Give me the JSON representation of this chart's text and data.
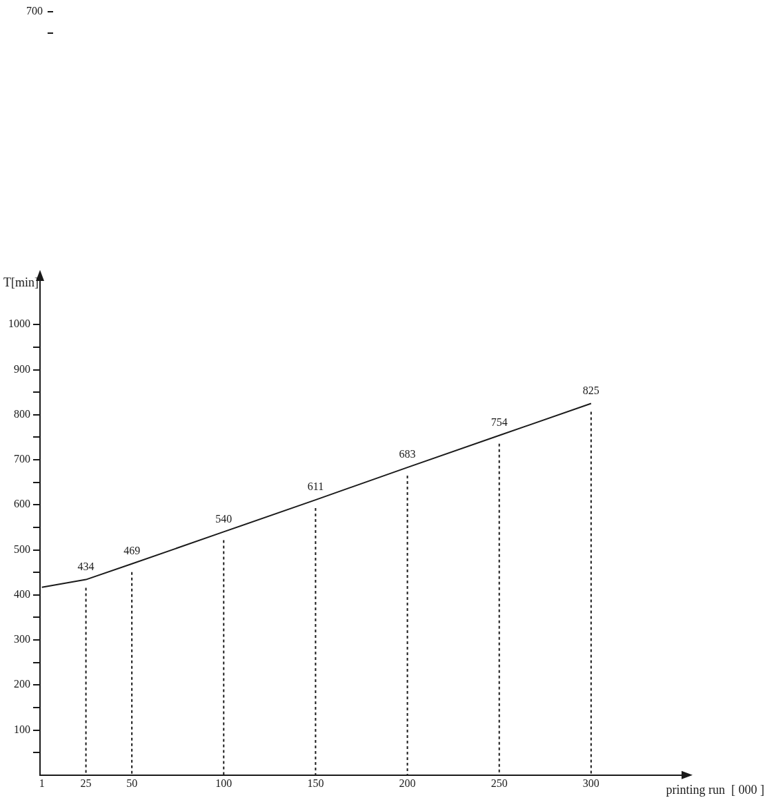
{
  "chart_data": {
    "type": "line",
    "xlabel": "printing run  [ 000 ]",
    "ylabel": "T[min]",
    "x": [
      1,
      25,
      50,
      100,
      150,
      200,
      250,
      300
    ],
    "series": [
      {
        "color": "#1a1a1a",
        "values": [
          417,
          434,
          469,
          540,
          611,
          683,
          754,
          825
        ],
        "value_labels": [
          null,
          "434",
          "469",
          "540",
          "611",
          "683",
          "754",
          "825"
        ]
      }
    ],
    "xlim": [
      0,
      350
    ],
    "xticks": [
      1,
      25,
      50,
      100,
      150,
      200,
      250,
      300
    ],
    "ylim": [
      0,
      1100
    ],
    "yticks": [
      {
        "value": 50,
        "label": null
      },
      100,
      {
        "value": 150,
        "label": null
      },
      200,
      {
        "value": 250,
        "label": null
      },
      300,
      {
        "value": 350,
        "label": null
      },
      400,
      {
        "value": 450,
        "label": null
      },
      500,
      {
        "value": 550,
        "label": null
      },
      600,
      {
        "value": 650,
        "label": null
      },
      700,
      {
        "value": 750,
        "label": null
      },
      800,
      {
        "value": 850,
        "label": null
      },
      900,
      {
        "value": 950,
        "label": null
      },
      1000
    ],
    "grid": false,
    "legend": false,
    "marker": "none",
    "line_style": "solid",
    "annotations": [
      "700"
    ],
    "ref_lines": [
      {
        "axis": "x",
        "value": 25,
        "line_style": "dotted"
      },
      {
        "axis": "x",
        "value": 50,
        "line_style": "dotted"
      },
      {
        "axis": "x",
        "value": 100,
        "line_style": "dotted"
      },
      {
        "axis": "x",
        "value": 150,
        "line_style": "dotted"
      },
      {
        "axis": "x",
        "value": 200,
        "line_style": "dotted"
      },
      {
        "axis": "x",
        "value": 250,
        "line_style": "dotted"
      },
      {
        "axis": "x",
        "value": 300,
        "line_style": "dotted"
      }
    ]
  }
}
